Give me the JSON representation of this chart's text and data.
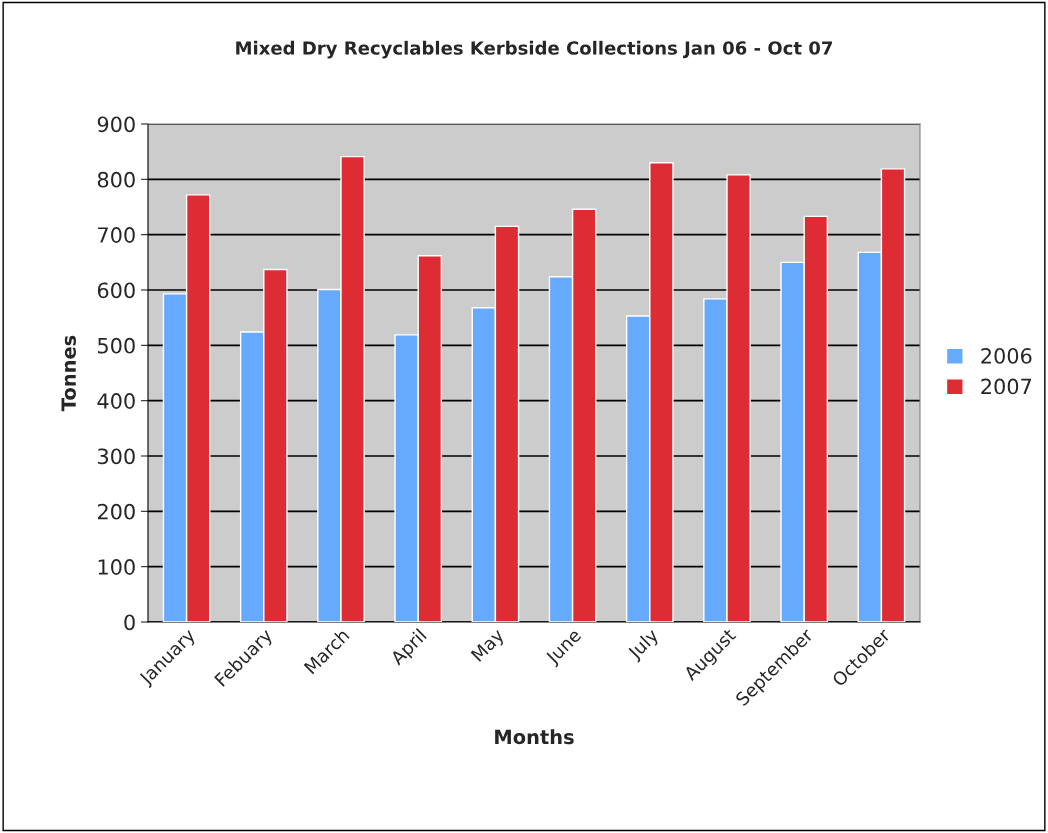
{
  "chart_data": {
    "type": "bar",
    "title": "Mixed Dry Recyclables Kerbside Collections Jan 06 - Oct 07",
    "xlabel": "Months",
    "ylabel": "Tonnes",
    "categories": [
      "January",
      "Febuary",
      "March",
      "April",
      "May",
      "June",
      "July",
      "August",
      "September",
      "October"
    ],
    "series": [
      {
        "name": "2006",
        "color": "#66aaff",
        "values": [
          593,
          524,
          601,
          519,
          568,
          624,
          553,
          584,
          650,
          668
        ]
      },
      {
        "name": "2007",
        "color": "#dd2c33",
        "values": [
          772,
          637,
          841,
          662,
          715,
          746,
          830,
          808,
          733,
          819
        ]
      }
    ],
    "ylim": [
      0,
      900
    ],
    "yticks": [
      0,
      100,
      200,
      300,
      400,
      500,
      600,
      700,
      800,
      900
    ],
    "grid": "y",
    "legend": "right"
  }
}
